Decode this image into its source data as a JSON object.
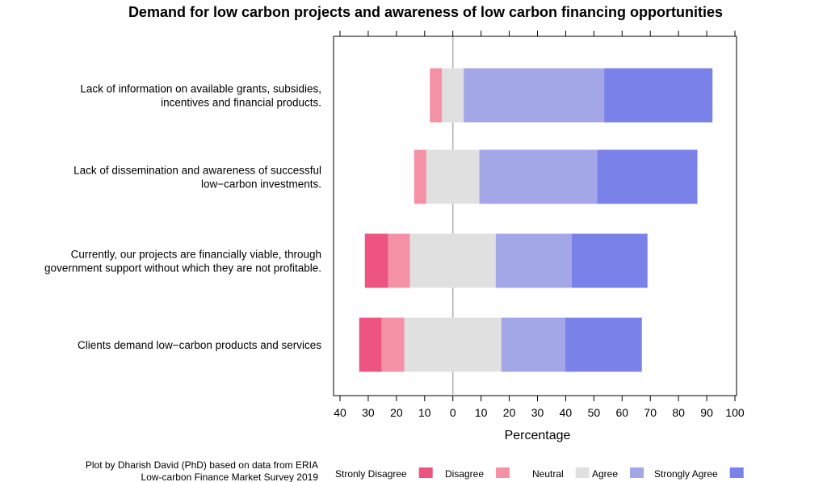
{
  "chart_data": {
    "type": "bar",
    "orientation": "horizontal",
    "stacking": "diverging",
    "title": "Demand for low carbon projects and awareness of low carbon financing opportunities",
    "xlabel": "Percentage",
    "xlim": [
      -40,
      100
    ],
    "xticks": [
      -40,
      -30,
      -20,
      -10,
      0,
      10,
      20,
      30,
      40,
      50,
      60,
      70,
      80,
      90,
      100
    ],
    "xtick_labels": [
      "40",
      "30",
      "20",
      "10",
      "0",
      "10",
      "20",
      "30",
      "40",
      "50",
      "60",
      "70",
      "80",
      "90",
      "100"
    ],
    "categories": [
      [
        "Lack of information on available grants, subsidies,",
        "incentives and financial products."
      ],
      [
        "Lack of dissemination and awareness of successful",
        "low−carbon investments."
      ],
      [
        "Currently, our projects are financially viable, through",
        "government support without which they are not profitable."
      ],
      [
        "Clients demand low−carbon products and services"
      ]
    ],
    "series": [
      {
        "name": "Stronly Disagree",
        "color": "#ee5482",
        "values": [
          0,
          0,
          8.3,
          8.0
        ]
      },
      {
        "name": "Disagree",
        "color": "#f591a5",
        "values": [
          4.3,
          4.3,
          7.7,
          8.0
        ]
      },
      {
        "name": "Neutral",
        "color": "#e0e0e0",
        "values": [
          7.7,
          18.8,
          30.4,
          34.4
        ]
      },
      {
        "name": "Agree",
        "color": "#a3a7e8",
        "values": [
          49.8,
          41.8,
          26.9,
          22.6
        ]
      },
      {
        "name": "Strongly Agree",
        "color": "#7a82e9",
        "values": [
          38.4,
          35.5,
          26.9,
          27.2
        ]
      }
    ],
    "legend_placement": "bottom",
    "grid": false,
    "zero_line_color": "#b0b0b0"
  },
  "caption": [
    "Plot by Dharish David (PhD) based on data from ERIA",
    "Low-carbon Finance Market Survey 2019"
  ]
}
